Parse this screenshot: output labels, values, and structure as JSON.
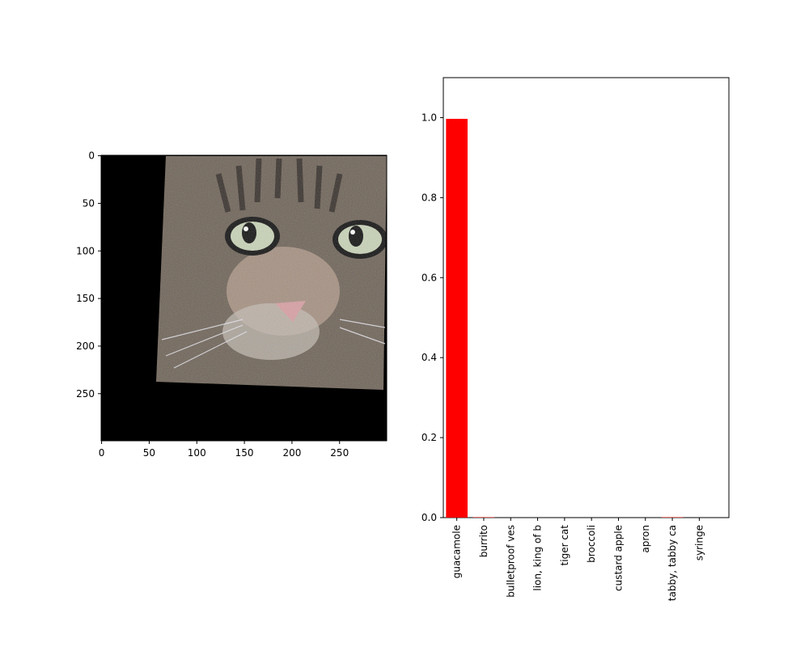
{
  "image_panel": {
    "description_icon": "cat-face-photo-adversarial-noise-icon",
    "x_ticks": [
      0,
      50,
      100,
      150,
      200,
      250
    ],
    "y_ticks": [
      0,
      50,
      100,
      150,
      200,
      250
    ],
    "x_range": [
      0,
      299
    ],
    "y_range": [
      0,
      299
    ]
  },
  "chart_data": {
    "type": "bar",
    "title": "",
    "xlabel": "",
    "ylabel": "",
    "categories": [
      "guacamole",
      "burrito",
      "bulletproof ves",
      "lion, king of b",
      "tiger cat",
      "broccoli",
      "custard apple",
      "apron",
      "tabby, tabby ca",
      "syringe"
    ],
    "values": [
      0.997,
      0.001,
      0.0,
      0.0,
      0.0,
      0.0,
      0.0,
      0.0,
      0.001,
      0.0
    ],
    "ylim": [
      0,
      1.1
    ],
    "y_ticks": [
      0.0,
      0.2,
      0.4,
      0.6,
      0.8,
      1.0
    ],
    "bar_color": "#ff0000",
    "grid": false
  }
}
